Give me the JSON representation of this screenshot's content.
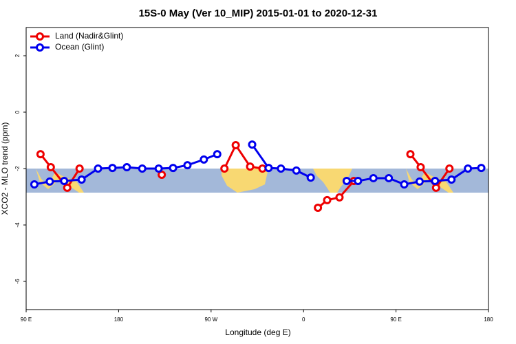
{
  "chart_data": {
    "type": "line",
    "title": "15S-0 May (Ver 10_MIP)   2015-01-01 to 2020-12-31",
    "xlabel": "Longitude (deg E)",
    "ylabel": "XCO2 - MLO trend (ppm)",
    "xlim": [
      90,
      540
    ],
    "ylim": [
      -7,
      3
    ],
    "xticks": [
      {
        "value": 90,
        "label": "90 E"
      },
      180,
      {
        "value": 270,
        "label": "90 W"
      },
      {
        "value": 360,
        "label": "0"
      },
      {
        "value": 450,
        "label": "90 E"
      },
      {
        "value": 540,
        "label": "180"
      }
    ],
    "yticks": [
      -6,
      -4,
      -2,
      0,
      2
    ],
    "legend": "top-left",
    "series": [
      {
        "name": "Land (Nadir&Glint)",
        "color": "#ee0000",
        "x": [
          104,
          114,
          130,
          142,
          null,
          222,
          null,
          283,
          294,
          308,
          320,
          null,
          374,
          383,
          395,
          409,
          null,
          464,
          474,
          489,
          502
        ],
        "values": [
          -1.49,
          -1.95,
          -2.68,
          -2.0,
          null,
          -2.22,
          null,
          -2.0,
          -1.17,
          -1.93,
          -2.0,
          null,
          -3.39,
          -3.12,
          -3.02,
          -2.44,
          null,
          -1.49,
          -1.95,
          -2.68,
          -2.0
        ]
      },
      {
        "name": "Ocean (Glint)",
        "color": "#0000ee",
        "x": [
          98,
          113,
          127,
          144,
          160,
          174,
          188,
          203,
          219,
          233,
          247,
          263,
          276,
          null,
          310,
          326,
          338,
          353,
          367,
          null,
          402,
          413,
          428,
          443,
          458,
          473,
          488,
          504,
          520,
          533
        ],
        "values": [
          -2.56,
          -2.46,
          -2.44,
          -2.39,
          -2.0,
          -1.98,
          -1.95,
          -2.0,
          -2.0,
          -1.98,
          -1.88,
          -1.68,
          -1.49,
          null,
          -1.15,
          -1.98,
          -2.0,
          -2.07,
          -2.32,
          null,
          -2.44,
          -2.44,
          -2.34,
          -2.34,
          -2.56,
          -2.46,
          -2.44,
          -2.39,
          -2.0,
          -1.98
        ]
      }
    ]
  }
}
